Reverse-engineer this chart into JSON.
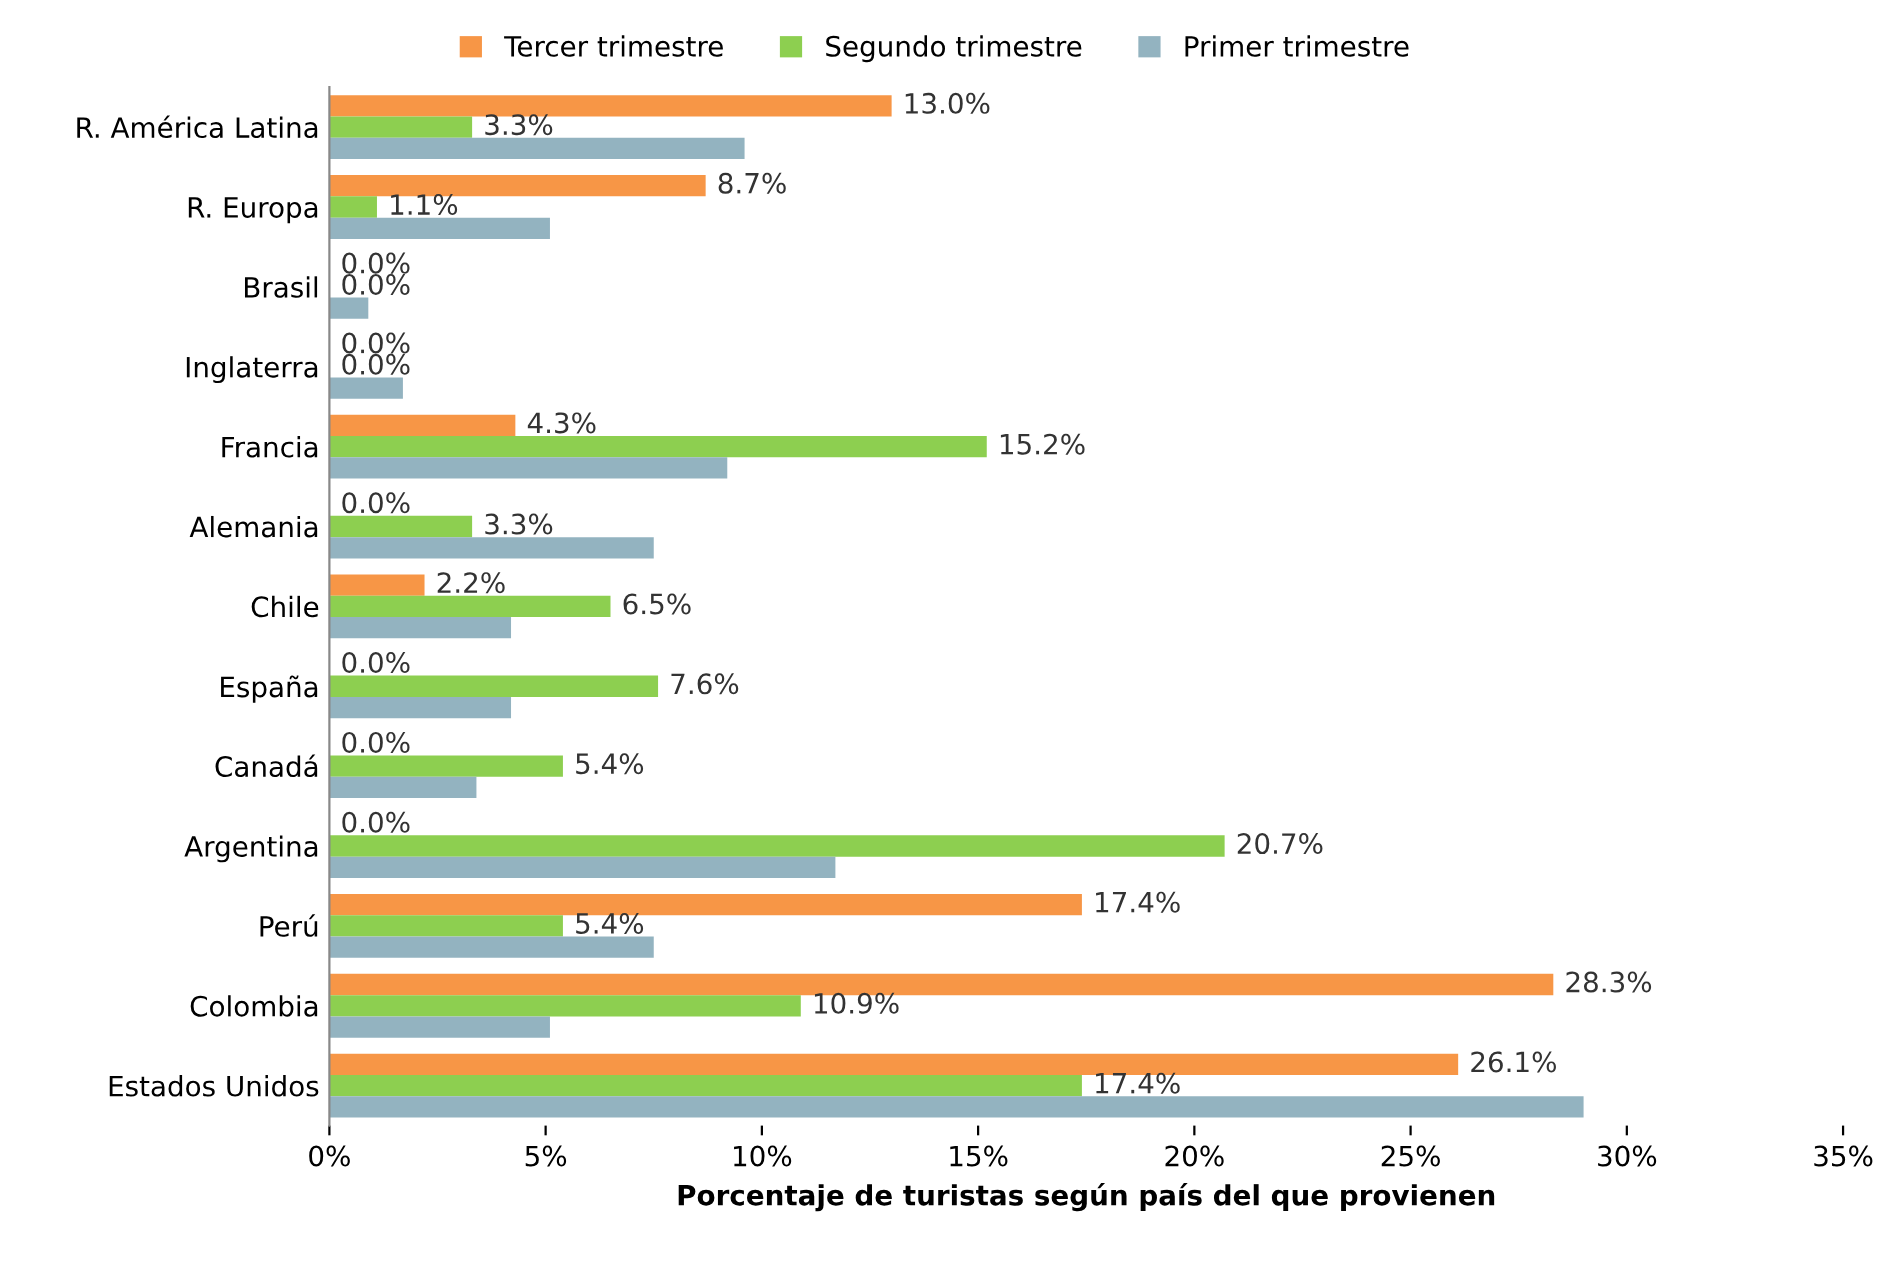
{
  "chart_data": {
    "type": "bar",
    "orientation": "horizontal",
    "xlabel": "Porcentaje de turistas según país del que provienen",
    "categories": [
      "R. América Latina",
      "R. Europa",
      "Brasil",
      "Inglaterra",
      "Francia",
      "Alemania",
      "Chile",
      "España",
      "Canadá",
      "Argentina",
      "Perú",
      "Colombia",
      "Estados Unidos"
    ],
    "series": [
      {
        "name": "Tercer trimestre",
        "color": "#f79646",
        "values": [
          13.0,
          8.7,
          0.0,
          0.0,
          4.3,
          0.0,
          2.2,
          0.0,
          0.0,
          0.0,
          17.4,
          28.3,
          26.1
        ],
        "value_labels": [
          "13.0%",
          "8.7%",
          "0.0%",
          "0.0%",
          "4.3%",
          "0.0%",
          "2.2%",
          "0.0%",
          "0.0%",
          "0.0%",
          "17.4%",
          "28.3%",
          "26.1%"
        ]
      },
      {
        "name": "Segundo trimestre",
        "color": "#8dcf50",
        "values": [
          3.3,
          1.1,
          0.0,
          0.0,
          15.2,
          3.3,
          6.5,
          7.6,
          5.4,
          20.7,
          5.4,
          10.9,
          17.4
        ],
        "value_labels": [
          "3.3%",
          "1.1%",
          "0.0%",
          "0.0%",
          "15.2%",
          "3.3%",
          "6.5%",
          "7.6%",
          "5.4%",
          "20.7%",
          "5.4%",
          "10.9%",
          "17.4%"
        ]
      },
      {
        "name": "Primer trimestre",
        "color": "#93b3c0",
        "values": [
          9.6,
          5.1,
          0.9,
          1.7,
          9.2,
          7.5,
          4.2,
          4.2,
          3.4,
          11.7,
          7.5,
          5.1,
          29.0
        ]
      }
    ],
    "xlim": [
      0,
      35
    ],
    "xticks": [
      {
        "value": 0,
        "label": "0%"
      },
      {
        "value": 5,
        "label": "5%"
      },
      {
        "value": 10,
        "label": "10%"
      },
      {
        "value": 15,
        "label": "15%"
      },
      {
        "value": 20,
        "label": "20%"
      },
      {
        "value": 25,
        "label": "25%"
      },
      {
        "value": 30,
        "label": "30%"
      },
      {
        "value": 35,
        "label": "35%"
      }
    ],
    "legend": "top",
    "grid": false
  }
}
